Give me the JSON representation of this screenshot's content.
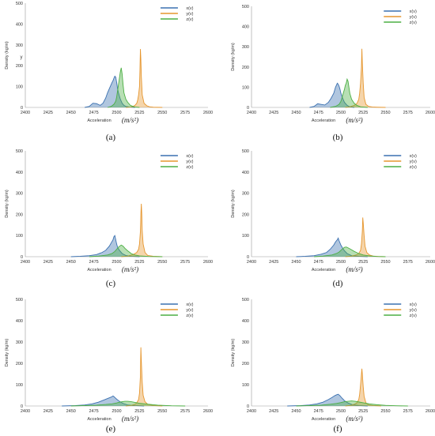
{
  "figure": {
    "captions": [
      "(a)",
      "(b)",
      "(c)",
      "(d)",
      "(e)",
      "(f)"
    ]
  },
  "colors": {
    "x": "#3a70b0",
    "y": "#e6962e",
    "z": "#4caf43"
  },
  "chart_data": [
    {
      "panel": "(a)",
      "type": "area",
      "xlabel": "Acceleration",
      "xlabel_unit": "(m/s²)",
      "ylabel": "Density (kg/m)",
      "annotation": "y",
      "xlim": [
        2400,
        2600
      ],
      "ylim": [
        0,
        500
      ],
      "xticks": [
        2400,
        2425,
        2450,
        2475,
        2500,
        2525,
        2550,
        2575,
        2600
      ],
      "yticks": [
        0,
        100,
        200,
        300,
        400,
        500
      ],
      "legend_position": "top-right",
      "series": [
        {
          "name": "x(v)",
          "x": [
            2465,
            2470,
            2474,
            2478,
            2482,
            2485,
            2488,
            2490,
            2492,
            2494,
            2495,
            2496,
            2497,
            2498,
            2499,
            2500,
            2501,
            2502,
            2504,
            2506,
            2508,
            2510,
            2514,
            2520
          ],
          "y": [
            0,
            5,
            20,
            18,
            10,
            20,
            45,
            70,
            90,
            110,
            120,
            128,
            140,
            150,
            145,
            120,
            90,
            70,
            40,
            20,
            10,
            5,
            2,
            0
          ]
        },
        {
          "name": "y(v)",
          "x": [
            2510,
            2515,
            2518,
            2520,
            2522,
            2523,
            2524,
            2525,
            2525.5,
            2526,
            2526.5,
            2527,
            2528,
            2530,
            2533,
            2536,
            2540,
            2550
          ],
          "y": [
            0,
            2,
            5,
            10,
            20,
            35,
            60,
            100,
            180,
            280,
            230,
            150,
            60,
            20,
            8,
            3,
            1,
            0
          ]
        },
        {
          "name": "z(v)",
          "x": [
            2490,
            2494,
            2497,
            2499,
            2500,
            2501,
            2502,
            2503,
            2504,
            2505,
            2506,
            2507,
            2508,
            2510,
            2512,
            2515,
            2518,
            2520,
            2525
          ],
          "y": [
            0,
            5,
            15,
            30,
            50,
            80,
            110,
            140,
            170,
            190,
            160,
            110,
            70,
            40,
            25,
            10,
            5,
            2,
            0
          ]
        }
      ]
    },
    {
      "panel": "(b)",
      "type": "area",
      "xlabel": "Acceleration",
      "xlabel_unit": "(m/s²)",
      "ylabel": "Density (kg/m)",
      "xlim": [
        2400,
        2600
      ],
      "ylim": [
        0,
        500
      ],
      "xticks": [
        2400,
        2425,
        2450,
        2475,
        2500,
        2525,
        2550,
        2575,
        2600
      ],
      "yticks": [
        0,
        100,
        200,
        300,
        400,
        500
      ],
      "legend_position": "top-right",
      "series": [
        {
          "name": "x(v)",
          "x": [
            2465,
            2470,
            2474,
            2478,
            2482,
            2486,
            2489,
            2492,
            2494,
            2496,
            2497,
            2498,
            2499,
            2500,
            2502,
            2504,
            2507,
            2510,
            2515
          ],
          "y": [
            0,
            5,
            18,
            15,
            12,
            25,
            45,
            70,
            100,
            120,
            115,
            105,
            90,
            70,
            45,
            25,
            10,
            3,
            0
          ]
        },
        {
          "name": "y(v)",
          "x": [
            2505,
            2510,
            2515,
            2518,
            2520,
            2521,
            2522,
            2523,
            2523.5,
            2524,
            2525,
            2526,
            2528,
            2531,
            2535,
            2540,
            2550
          ],
          "y": [
            0,
            3,
            10,
            20,
            40,
            70,
            120,
            200,
            290,
            220,
            120,
            50,
            15,
            5,
            2,
            1,
            0
          ]
        },
        {
          "name": "z(v)",
          "x": [
            2488,
            2494,
            2498,
            2500,
            2502,
            2504,
            2505,
            2506,
            2507,
            2508,
            2509,
            2510,
            2512,
            2515,
            2518,
            2522,
            2530
          ],
          "y": [
            0,
            5,
            15,
            30,
            60,
            90,
            110,
            120,
            140,
            130,
            100,
            70,
            40,
            20,
            10,
            3,
            0
          ]
        }
      ]
    },
    {
      "panel": "(c)",
      "type": "area",
      "xlabel": "Acceleration",
      "xlabel_unit": "(m/s²)",
      "ylabel": "Density (kg/m)",
      "xlim": [
        2400,
        2600
      ],
      "ylim": [
        0,
        500
      ],
      "xticks": [
        2400,
        2425,
        2450,
        2475,
        2500,
        2525,
        2550,
        2575,
        2600
      ],
      "yticks": [
        0,
        100,
        200,
        300,
        400,
        500
      ],
      "legend_position": "top-right",
      "series": [
        {
          "name": "x(v)",
          "x": [
            2450,
            2460,
            2470,
            2478,
            2484,
            2488,
            2492,
            2494,
            2496,
            2497,
            2498,
            2499,
            2500,
            2501,
            2503,
            2506,
            2510,
            2516,
            2525
          ],
          "y": [
            0,
            2,
            5,
            10,
            20,
            30,
            50,
            65,
            80,
            95,
            100,
            80,
            60,
            45,
            30,
            15,
            6,
            2,
            0
          ]
        },
        {
          "name": "y(v)",
          "x": [
            2505,
            2512,
            2518,
            2522,
            2524,
            2525,
            2526,
            2526.5,
            2527,
            2527.5,
            2528,
            2529,
            2531,
            2534,
            2540,
            2550
          ],
          "y": [
            0,
            3,
            10,
            20,
            35,
            60,
            120,
            200,
            250,
            200,
            120,
            60,
            20,
            6,
            2,
            0
          ]
        },
        {
          "name": "z(v)",
          "x": [
            2470,
            2480,
            2490,
            2495,
            2498,
            2500,
            2502,
            2504,
            2505,
            2507,
            2509,
            2512,
            2516,
            2520,
            2525,
            2535,
            2550
          ],
          "y": [
            0,
            3,
            8,
            15,
            25,
            35,
            45,
            52,
            55,
            50,
            40,
            28,
            15,
            8,
            4,
            1,
            0
          ]
        }
      ]
    },
    {
      "panel": "(d)",
      "type": "area",
      "xlabel": "Acceleration",
      "xlabel_unit": "(m/s²)",
      "ylabel": "Density (kg/m)",
      "xlim": [
        2400,
        2600
      ],
      "ylim": [
        0,
        500
      ],
      "xticks": [
        2400,
        2425,
        2450,
        2475,
        2500,
        2525,
        2550,
        2575,
        2600
      ],
      "yticks": [
        0,
        100,
        200,
        300,
        400,
        500
      ],
      "legend_position": "top-right",
      "series": [
        {
          "name": "x(v)",
          "x": [
            2450,
            2460,
            2470,
            2478,
            2484,
            2488,
            2492,
            2494,
            2496,
            2497,
            2498,
            2499,
            2500,
            2502,
            2504,
            2507,
            2512,
            2520,
            2530
          ],
          "y": [
            0,
            2,
            5,
            12,
            20,
            35,
            55,
            70,
            80,
            88,
            75,
            65,
            55,
            40,
            28,
            15,
            5,
            2,
            0
          ]
        },
        {
          "name": "y(v)",
          "x": [
            2505,
            2512,
            2517,
            2520,
            2522,
            2523,
            2524,
            2524.5,
            2525,
            2526,
            2527,
            2529,
            2532,
            2536,
            2542,
            2550
          ],
          "y": [
            0,
            3,
            8,
            15,
            30,
            60,
            120,
            185,
            160,
            100,
            50,
            20,
            8,
            3,
            1,
            0
          ]
        },
        {
          "name": "z(v)",
          "x": [
            2470,
            2480,
            2490,
            2495,
            2498,
            2500,
            2502,
            2504,
            2506,
            2508,
            2511,
            2515,
            2520,
            2525,
            2532,
            2540,
            2550
          ],
          "y": [
            0,
            3,
            8,
            15,
            22,
            30,
            38,
            44,
            46,
            42,
            35,
            25,
            15,
            8,
            4,
            1,
            0
          ]
        }
      ]
    },
    {
      "panel": "(e)",
      "type": "area",
      "xlabel": "Acceleration",
      "xlabel_unit": "(m/s²)",
      "ylabel": "Density (kg/m)",
      "xlim": [
        2400,
        2600
      ],
      "ylim": [
        0,
        500
      ],
      "xticks": [
        2400,
        2425,
        2450,
        2475,
        2500,
        2525,
        2550,
        2575,
        2600
      ],
      "yticks": [
        0,
        100,
        200,
        300,
        400,
        500
      ],
      "legend_position": "top-right",
      "series": [
        {
          "name": "x(v)",
          "x": [
            2440,
            2455,
            2465,
            2473,
            2480,
            2486,
            2490,
            2493,
            2495,
            2496,
            2497,
            2498,
            2500,
            2503,
            2507,
            2512,
            2520,
            2530
          ],
          "y": [
            0,
            2,
            5,
            10,
            18,
            28,
            35,
            40,
            44,
            47,
            44,
            40,
            32,
            22,
            12,
            5,
            2,
            0
          ]
        },
        {
          "name": "y(v)",
          "x": [
            2510,
            2516,
            2520,
            2522,
            2524,
            2525,
            2526,
            2526.5,
            2527,
            2528,
            2529,
            2531,
            2534,
            2540,
            2550
          ],
          "y": [
            0,
            3,
            8,
            15,
            30,
            60,
            140,
            275,
            210,
            110,
            50,
            20,
            8,
            2,
            0
          ]
        },
        {
          "name": "z(v)",
          "x": [
            2450,
            2465,
            2478,
            2488,
            2495,
            2500,
            2503,
            2506,
            2509,
            2512,
            2516,
            2520,
            2526,
            2535,
            2545,
            2560,
            2575
          ],
          "y": [
            0,
            2,
            4,
            7,
            10,
            14,
            18,
            20,
            22,
            22,
            20,
            17,
            12,
            8,
            4,
            1,
            0
          ]
        }
      ]
    },
    {
      "panel": "(f)",
      "type": "area",
      "xlabel": "Acceleration",
      "xlabel_unit": "(m/s²)",
      "ylabel": "Density (kg/m)",
      "xlim": [
        2400,
        2600
      ],
      "ylim": [
        0,
        500
      ],
      "xticks": [
        2400,
        2425,
        2450,
        2475,
        2500,
        2525,
        2550,
        2575,
        2600
      ],
      "yticks": [
        0,
        100,
        200,
        300,
        400,
        500
      ],
      "legend_position": "top-right",
      "series": [
        {
          "name": "x(v)",
          "x": [
            2440,
            2455,
            2465,
            2473,
            2480,
            2486,
            2490,
            2493,
            2495,
            2497,
            2499,
            2501,
            2504,
            2508,
            2513,
            2520,
            2530
          ],
          "y": [
            0,
            2,
            5,
            10,
            18,
            30,
            40,
            48,
            52,
            55,
            48,
            38,
            25,
            14,
            6,
            2,
            0
          ]
        },
        {
          "name": "y(v)",
          "x": [
            2505,
            2511,
            2515,
            2518,
            2520,
            2521,
            2522,
            2523,
            2523.5,
            2524,
            2525,
            2526,
            2528,
            2531,
            2536,
            2545
          ],
          "y": [
            0,
            3,
            8,
            15,
            30,
            55,
            100,
            150,
            175,
            150,
            90,
            45,
            15,
            5,
            2,
            0
          ]
        },
        {
          "name": "z(v)",
          "x": [
            2450,
            2465,
            2478,
            2488,
            2495,
            2500,
            2504,
            2508,
            2512,
            2516,
            2520,
            2525,
            2532,
            2540,
            2550,
            2562,
            2575
          ],
          "y": [
            0,
            2,
            4,
            8,
            12,
            16,
            20,
            22,
            24,
            22,
            19,
            15,
            10,
            6,
            3,
            1,
            0
          ]
        }
      ]
    }
  ]
}
